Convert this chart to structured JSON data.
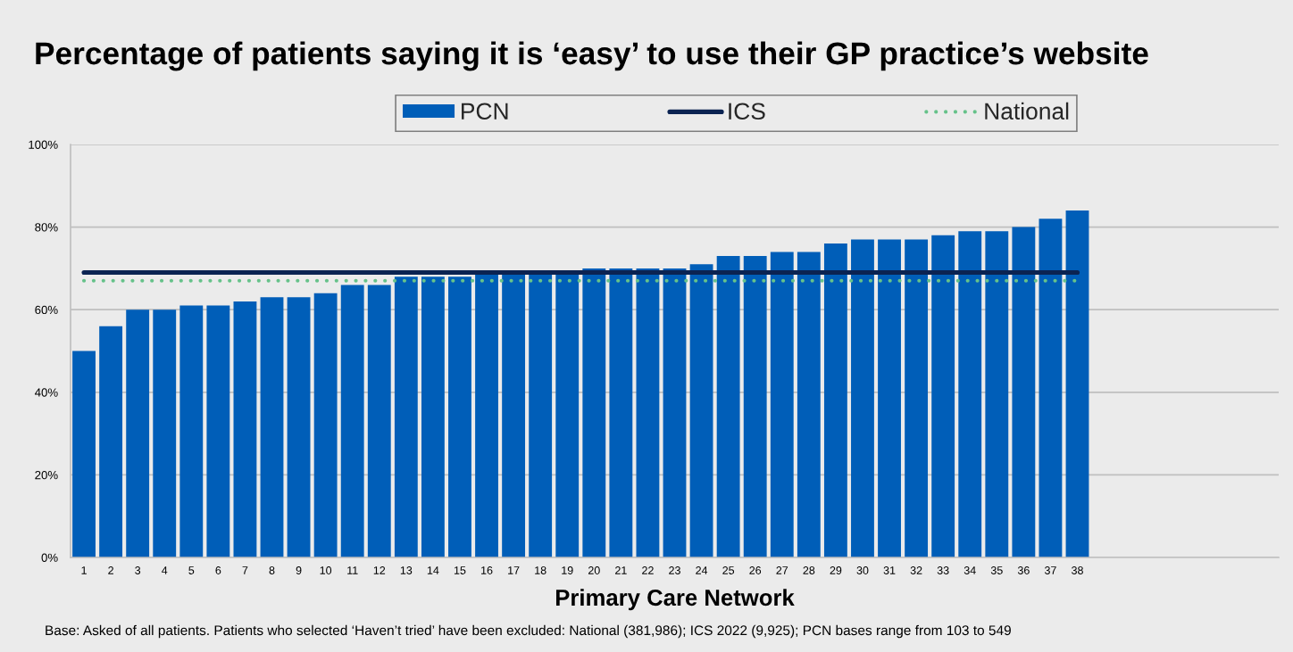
{
  "chart_data": {
    "type": "bar",
    "title": "Percentage of patients saying it is ‘easy’ to use their GP practice’s website",
    "xlabel": "Primary Care Network",
    "categories": [
      "1",
      "2",
      "3",
      "4",
      "5",
      "6",
      "7",
      "8",
      "9",
      "10",
      "11",
      "12",
      "13",
      "14",
      "15",
      "16",
      "17",
      "18",
      "19",
      "20",
      "21",
      "22",
      "23",
      "24",
      "25",
      "26",
      "27",
      "28",
      "29",
      "30",
      "31",
      "32",
      "33",
      "34",
      "35",
      "36",
      "37",
      "38",
      null,
      null,
      null,
      null,
      null,
      null,
      null
    ],
    "series": [
      {
        "name": "PCN",
        "color": "#005eb8",
        "values": [
          50,
          56,
          60,
          60,
          61,
          61,
          62,
          63,
          63,
          64,
          66,
          66,
          68,
          68,
          68,
          69,
          69,
          69,
          69,
          70,
          70,
          70,
          70,
          71,
          73,
          73,
          74,
          74,
          76,
          77,
          77,
          77,
          78,
          79,
          79,
          80,
          82,
          84,
          null,
          null,
          null,
          null,
          null,
          null,
          null
        ]
      },
      {
        "name": "ICS",
        "type": "line",
        "color": "#0b2352",
        "line_style": "solid",
        "values": [
          69,
          69,
          69,
          69,
          69,
          69,
          69,
          69,
          69,
          69,
          69,
          69,
          69,
          69,
          69,
          69,
          69,
          69,
          69,
          69,
          69,
          69,
          69,
          69,
          69,
          69,
          69,
          69,
          69,
          69,
          69,
          69,
          69,
          69,
          69,
          69,
          69,
          69,
          null,
          null,
          null,
          null,
          null,
          null,
          null
        ]
      },
      {
        "name": "National",
        "type": "line",
        "color": "#66c28a",
        "line_style": "dotted",
        "values": [
          67,
          67,
          67,
          67,
          67,
          67,
          67,
          67,
          67,
          67,
          67,
          67,
          67,
          67,
          67,
          67,
          67,
          67,
          67,
          67,
          67,
          67,
          67,
          67,
          67,
          67,
          67,
          67,
          67,
          67,
          67,
          67,
          67,
          67,
          67,
          67,
          67,
          67,
          null,
          null,
          null,
          null,
          null,
          null,
          null
        ]
      }
    ],
    "ylim": [
      0,
      100
    ],
    "yticks": [
      {
        "value": 0,
        "label": "0%"
      },
      {
        "value": 20,
        "label": "20%"
      },
      {
        "value": 40,
        "label": "40%"
      },
      {
        "value": 60,
        "label": "60%"
      },
      {
        "value": 80,
        "label": "80%"
      },
      {
        "value": 100,
        "label": "100%"
      }
    ],
    "grid": "y",
    "legend": "top",
    "annotations": [
      "Base: Asked of all patients. Patients who selected ‘Haven’t tried’ have been excluded: National (381,986); ICS 2022 (9,925); PCN bases range from 103 to 549"
    ]
  }
}
